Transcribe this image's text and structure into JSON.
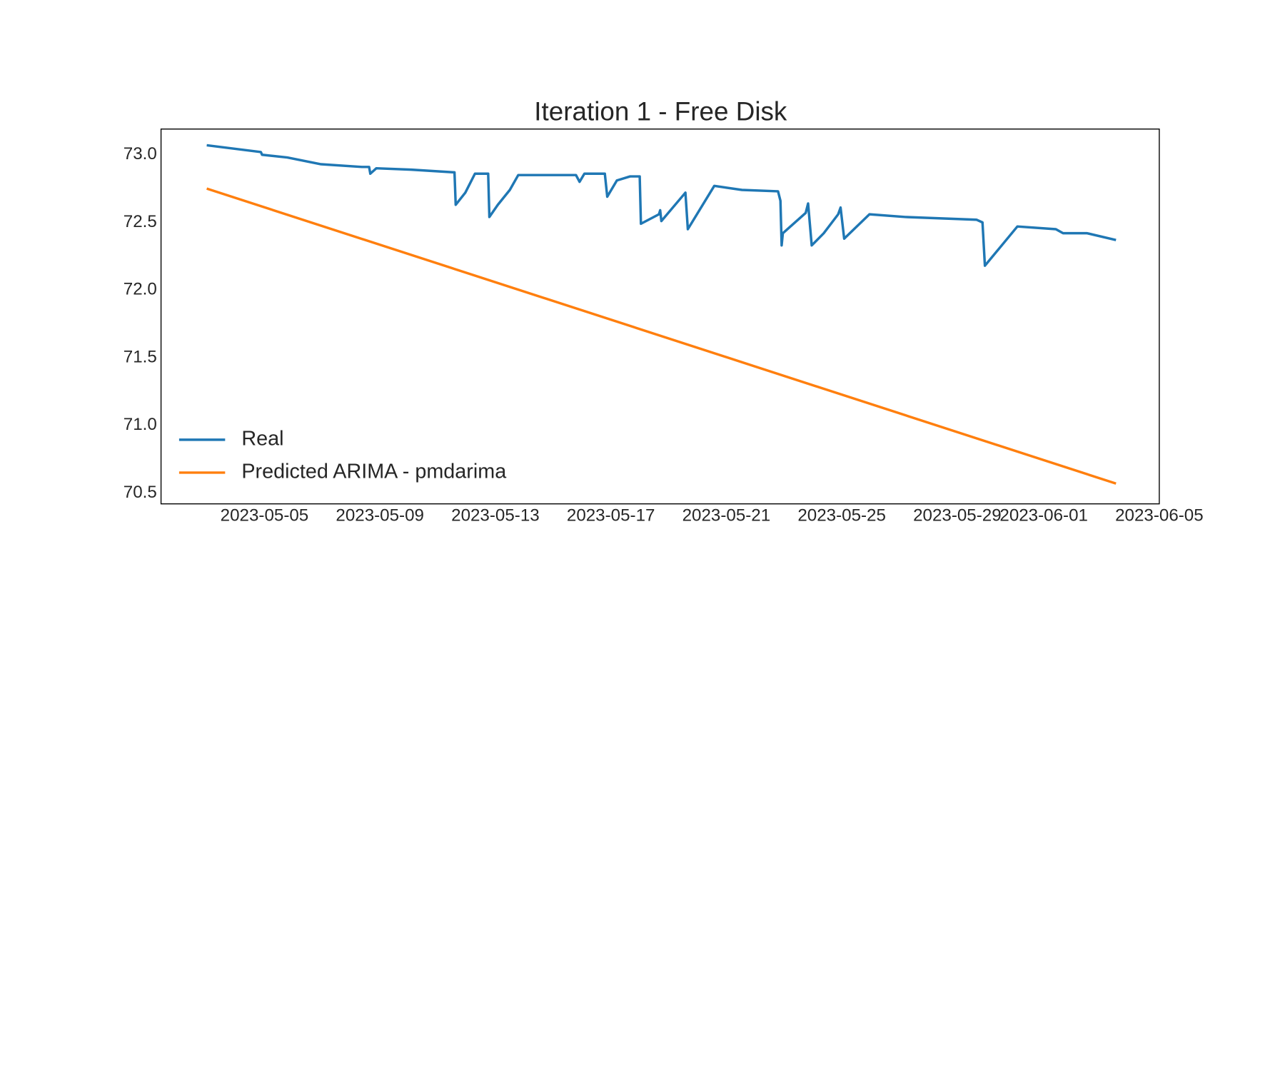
{
  "chart_data": {
    "type": "line",
    "title": "Iteration 1 - Free Disk",
    "series": [
      {
        "name": "Real",
        "color": "#1f77b4",
        "x": [
          "2023-05-03 00:00",
          "2023-05-04 21:00",
          "2023-05-04 22:00",
          "2023-05-05 19:00",
          "2023-05-06 23:00",
          "2023-05-08 09:00",
          "2023-05-08 15:00",
          "2023-05-08 16:00",
          "2023-05-08 21:00",
          "2023-05-10 02:00",
          "2023-05-11 14:00",
          "2023-05-11 15:00",
          "2023-05-11 23:00",
          "2023-05-12 07:00",
          "2023-05-12 18:00",
          "2023-05-12 19:00",
          "2023-05-13 02:00",
          "2023-05-13 12:00",
          "2023-05-13 19:00",
          "2023-05-15 19:00",
          "2023-05-15 22:00",
          "2023-05-16 02:00",
          "2023-05-16 19:00",
          "2023-05-16 21:00",
          "2023-05-17 05:00",
          "2023-05-17 16:00",
          "2023-05-18 00:00",
          "2023-05-18 01:00",
          "2023-05-18 16:00",
          "2023-05-18 17:00",
          "2023-05-18 18:00",
          "2023-05-19 14:00",
          "2023-05-19 16:00",
          "2023-05-20 14:00",
          "2023-05-21 13:00",
          "2023-05-22 19:00",
          "2023-05-22 21:00",
          "2023-05-22 22:00",
          "2023-05-22 23:00",
          "2023-05-23 18:00",
          "2023-05-23 20:00",
          "2023-05-23 23:00",
          "2023-05-24 09:00",
          "2023-05-24 21:00",
          "2023-05-24 23:00",
          "2023-05-25 02:00",
          "2023-05-25 23:00",
          "2023-05-27 05:00",
          "2023-05-29 16:00",
          "2023-05-29 21:00",
          "2023-05-29 23:00",
          "2023-05-31 02:00",
          "2023-06-01 10:00",
          "2023-06-01 16:00",
          "2023-06-02 12:00",
          "2023-06-03 12:00"
        ],
        "values": [
          73.07,
          73.02,
          73.0,
          72.98,
          72.93,
          72.91,
          72.91,
          72.86,
          72.9,
          72.89,
          72.87,
          72.63,
          72.72,
          72.86,
          72.86,
          72.54,
          72.63,
          72.74,
          72.85,
          72.85,
          72.8,
          72.86,
          72.86,
          72.69,
          72.81,
          72.84,
          72.84,
          72.49,
          72.56,
          72.59,
          72.51,
          72.72,
          72.45,
          72.77,
          72.74,
          72.73,
          72.66,
          72.33,
          72.42,
          72.57,
          72.64,
          72.33,
          72.42,
          72.56,
          72.61,
          72.38,
          72.56,
          72.54,
          72.52,
          72.5,
          72.18,
          72.47,
          72.45,
          72.42,
          72.42,
          72.37
        ]
      },
      {
        "name": "Predicted ARIMA - pmdarima",
        "color": "#ff7f0e",
        "x": [
          "2023-05-03 00:00",
          "2023-06-03 12:00"
        ],
        "values": [
          72.75,
          70.57
        ]
      }
    ],
    "xlim": [
      "2023-05-01 10:00",
      "2023-06-05 00:00"
    ],
    "xticks": [
      "2023-05-05",
      "2023-05-09",
      "2023-05-13",
      "2023-05-17",
      "2023-05-21",
      "2023-05-25",
      "2023-05-29",
      "2023-06-01",
      "2023-06-05"
    ],
    "ylim": [
      70.42,
      73.19
    ],
    "yticks": [
      {
        "value": 70.5,
        "label": "70.5"
      },
      {
        "value": 71,
        "label": "71.0"
      },
      {
        "value": 71.5,
        "label": "71.5"
      },
      {
        "value": 72,
        "label": "72.0"
      },
      {
        "value": 72.5,
        "label": "72.5"
      },
      {
        "value": 73,
        "label": "73.0"
      }
    ],
    "grid": false,
    "legend": "lower left"
  }
}
